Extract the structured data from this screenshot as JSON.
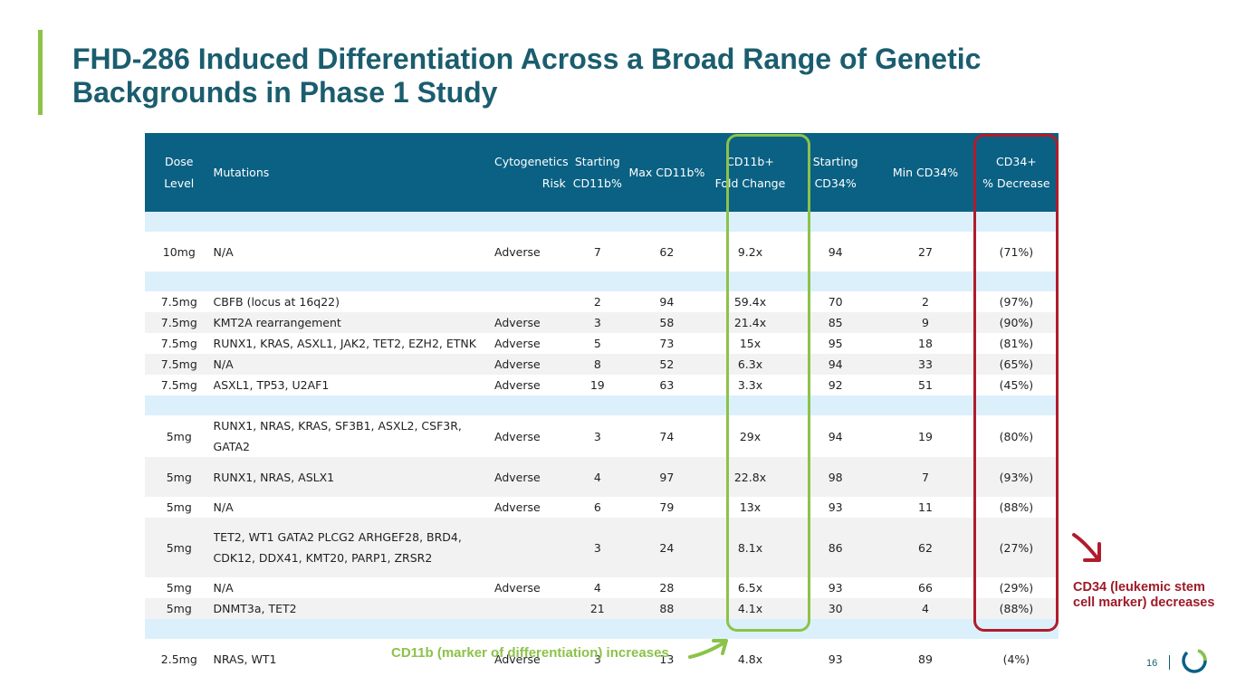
{
  "title": "FHD-286 Induced Differentiation Across a Broad Range of Genetic Backgrounds in Phase 1 Study",
  "table": {
    "headers": {
      "dose": "Dose\nLevel",
      "mutations": "Mutations",
      "cyto": "Cytogenetics\nRisk",
      "start_cd11b": "Starting\nCD11b%",
      "max_cd11b": "Max CD11b%",
      "fold": "CD11b+\nFold Change",
      "start_cd34": "Starting\nCD34%",
      "min_cd34": "Min CD34%",
      "decrease": "CD34+\n% Decrease"
    },
    "rows": [
      {
        "dose": "10mg",
        "mutations": "N/A",
        "cyto": "Adverse",
        "start_cd11b": "7",
        "max_cd11b": "62",
        "fold": "9.2x",
        "start_cd34": "94",
        "min_cd34": "27",
        "decrease": "(71%)"
      },
      {
        "dose": "7.5mg",
        "mutations": "CBFB (locus at 16q22)",
        "cyto": "",
        "start_cd11b": "2",
        "max_cd11b": "94",
        "fold": "59.4x",
        "start_cd34": "70",
        "min_cd34": "2",
        "decrease": "(97%)"
      },
      {
        "dose": "7.5mg",
        "mutations": "KMT2A rearrangement",
        "cyto": "Adverse",
        "start_cd11b": "3",
        "max_cd11b": "58",
        "fold": "21.4x",
        "start_cd34": "85",
        "min_cd34": "9",
        "decrease": "(90%)"
      },
      {
        "dose": "7.5mg",
        "mutations": "RUNX1, KRAS, ASXL1, JAK2, TET2, EZH2, ETNK",
        "cyto": "Adverse",
        "start_cd11b": "5",
        "max_cd11b": "73",
        "fold": "15x",
        "start_cd34": "95",
        "min_cd34": "18",
        "decrease": "(81%)"
      },
      {
        "dose": "7.5mg",
        "mutations": "N/A",
        "cyto": "Adverse",
        "start_cd11b": "8",
        "max_cd11b": "52",
        "fold": "6.3x",
        "start_cd34": "94",
        "min_cd34": "33",
        "decrease": "(65%)"
      },
      {
        "dose": "7.5mg",
        "mutations": "ASXL1, TP53, U2AF1",
        "cyto": "Adverse",
        "start_cd11b": "19",
        "max_cd11b": "63",
        "fold": "3.3x",
        "start_cd34": "92",
        "min_cd34": "51",
        "decrease": "(45%)"
      },
      {
        "dose": "5mg",
        "mutations": "RUNX1, NRAS, KRAS, SF3B1, ASXL2, CSF3R, GATA2",
        "cyto": "Adverse",
        "start_cd11b": "3",
        "max_cd11b": "74",
        "fold": "29x",
        "start_cd34": "94",
        "min_cd34": "19",
        "decrease": "(80%)"
      },
      {
        "dose": "5mg",
        "mutations": "RUNX1, NRAS, ASLX1",
        "cyto": "Adverse",
        "start_cd11b": "4",
        "max_cd11b": "97",
        "fold": "22.8x",
        "start_cd34": "98",
        "min_cd34": "7",
        "decrease": "(93%)"
      },
      {
        "dose": "5mg",
        "mutations": "N/A",
        "cyto": "Adverse",
        "start_cd11b": "6",
        "max_cd11b": "79",
        "fold": "13x",
        "start_cd34": "93",
        "min_cd34": "11",
        "decrease": "(88%)"
      },
      {
        "dose": "5mg",
        "mutations": "TET2, WT1 GATA2 PLCG2 ARHGEF28, BRD4, CDK12, DDX41, KMT20, PARP1, ZRSR2",
        "cyto": "",
        "start_cd11b": "3",
        "max_cd11b": "24",
        "fold": "8.1x",
        "start_cd34": "86",
        "min_cd34": "62",
        "decrease": "(27%)"
      },
      {
        "dose": "5mg",
        "mutations": "N/A",
        "cyto": "Adverse",
        "start_cd11b": "4",
        "max_cd11b": "28",
        "fold": "6.5x",
        "start_cd34": "93",
        "min_cd34": "66",
        "decrease": "(29%)"
      },
      {
        "dose": "5mg",
        "mutations": "DNMT3a, TET2",
        "cyto": "",
        "start_cd11b": "21",
        "max_cd11b": "88",
        "fold": "4.1x",
        "start_cd34": "30",
        "min_cd34": "4",
        "decrease": "(88%)"
      },
      {
        "dose": "2.5mg",
        "mutations": "NRAS, WT1",
        "cyto": "Adverse",
        "start_cd11b": "3",
        "max_cd11b": "13",
        "fold": "4.8x",
        "start_cd34": "93",
        "min_cd34": "89",
        "decrease": "(4%)"
      }
    ]
  },
  "annotations": {
    "cd11b_note": "CD11b (marker of differentiation) increases",
    "cd34_note": "CD34 (leukemic stem cell marker) decreases"
  },
  "footer": {
    "page_number": "16"
  },
  "colors": {
    "title": "#1a5d6e",
    "header_bg": "#0a6184",
    "accent_green": "#8cc24a",
    "accent_red": "#b01c2b",
    "spacer_row": "#dcf0fb"
  }
}
